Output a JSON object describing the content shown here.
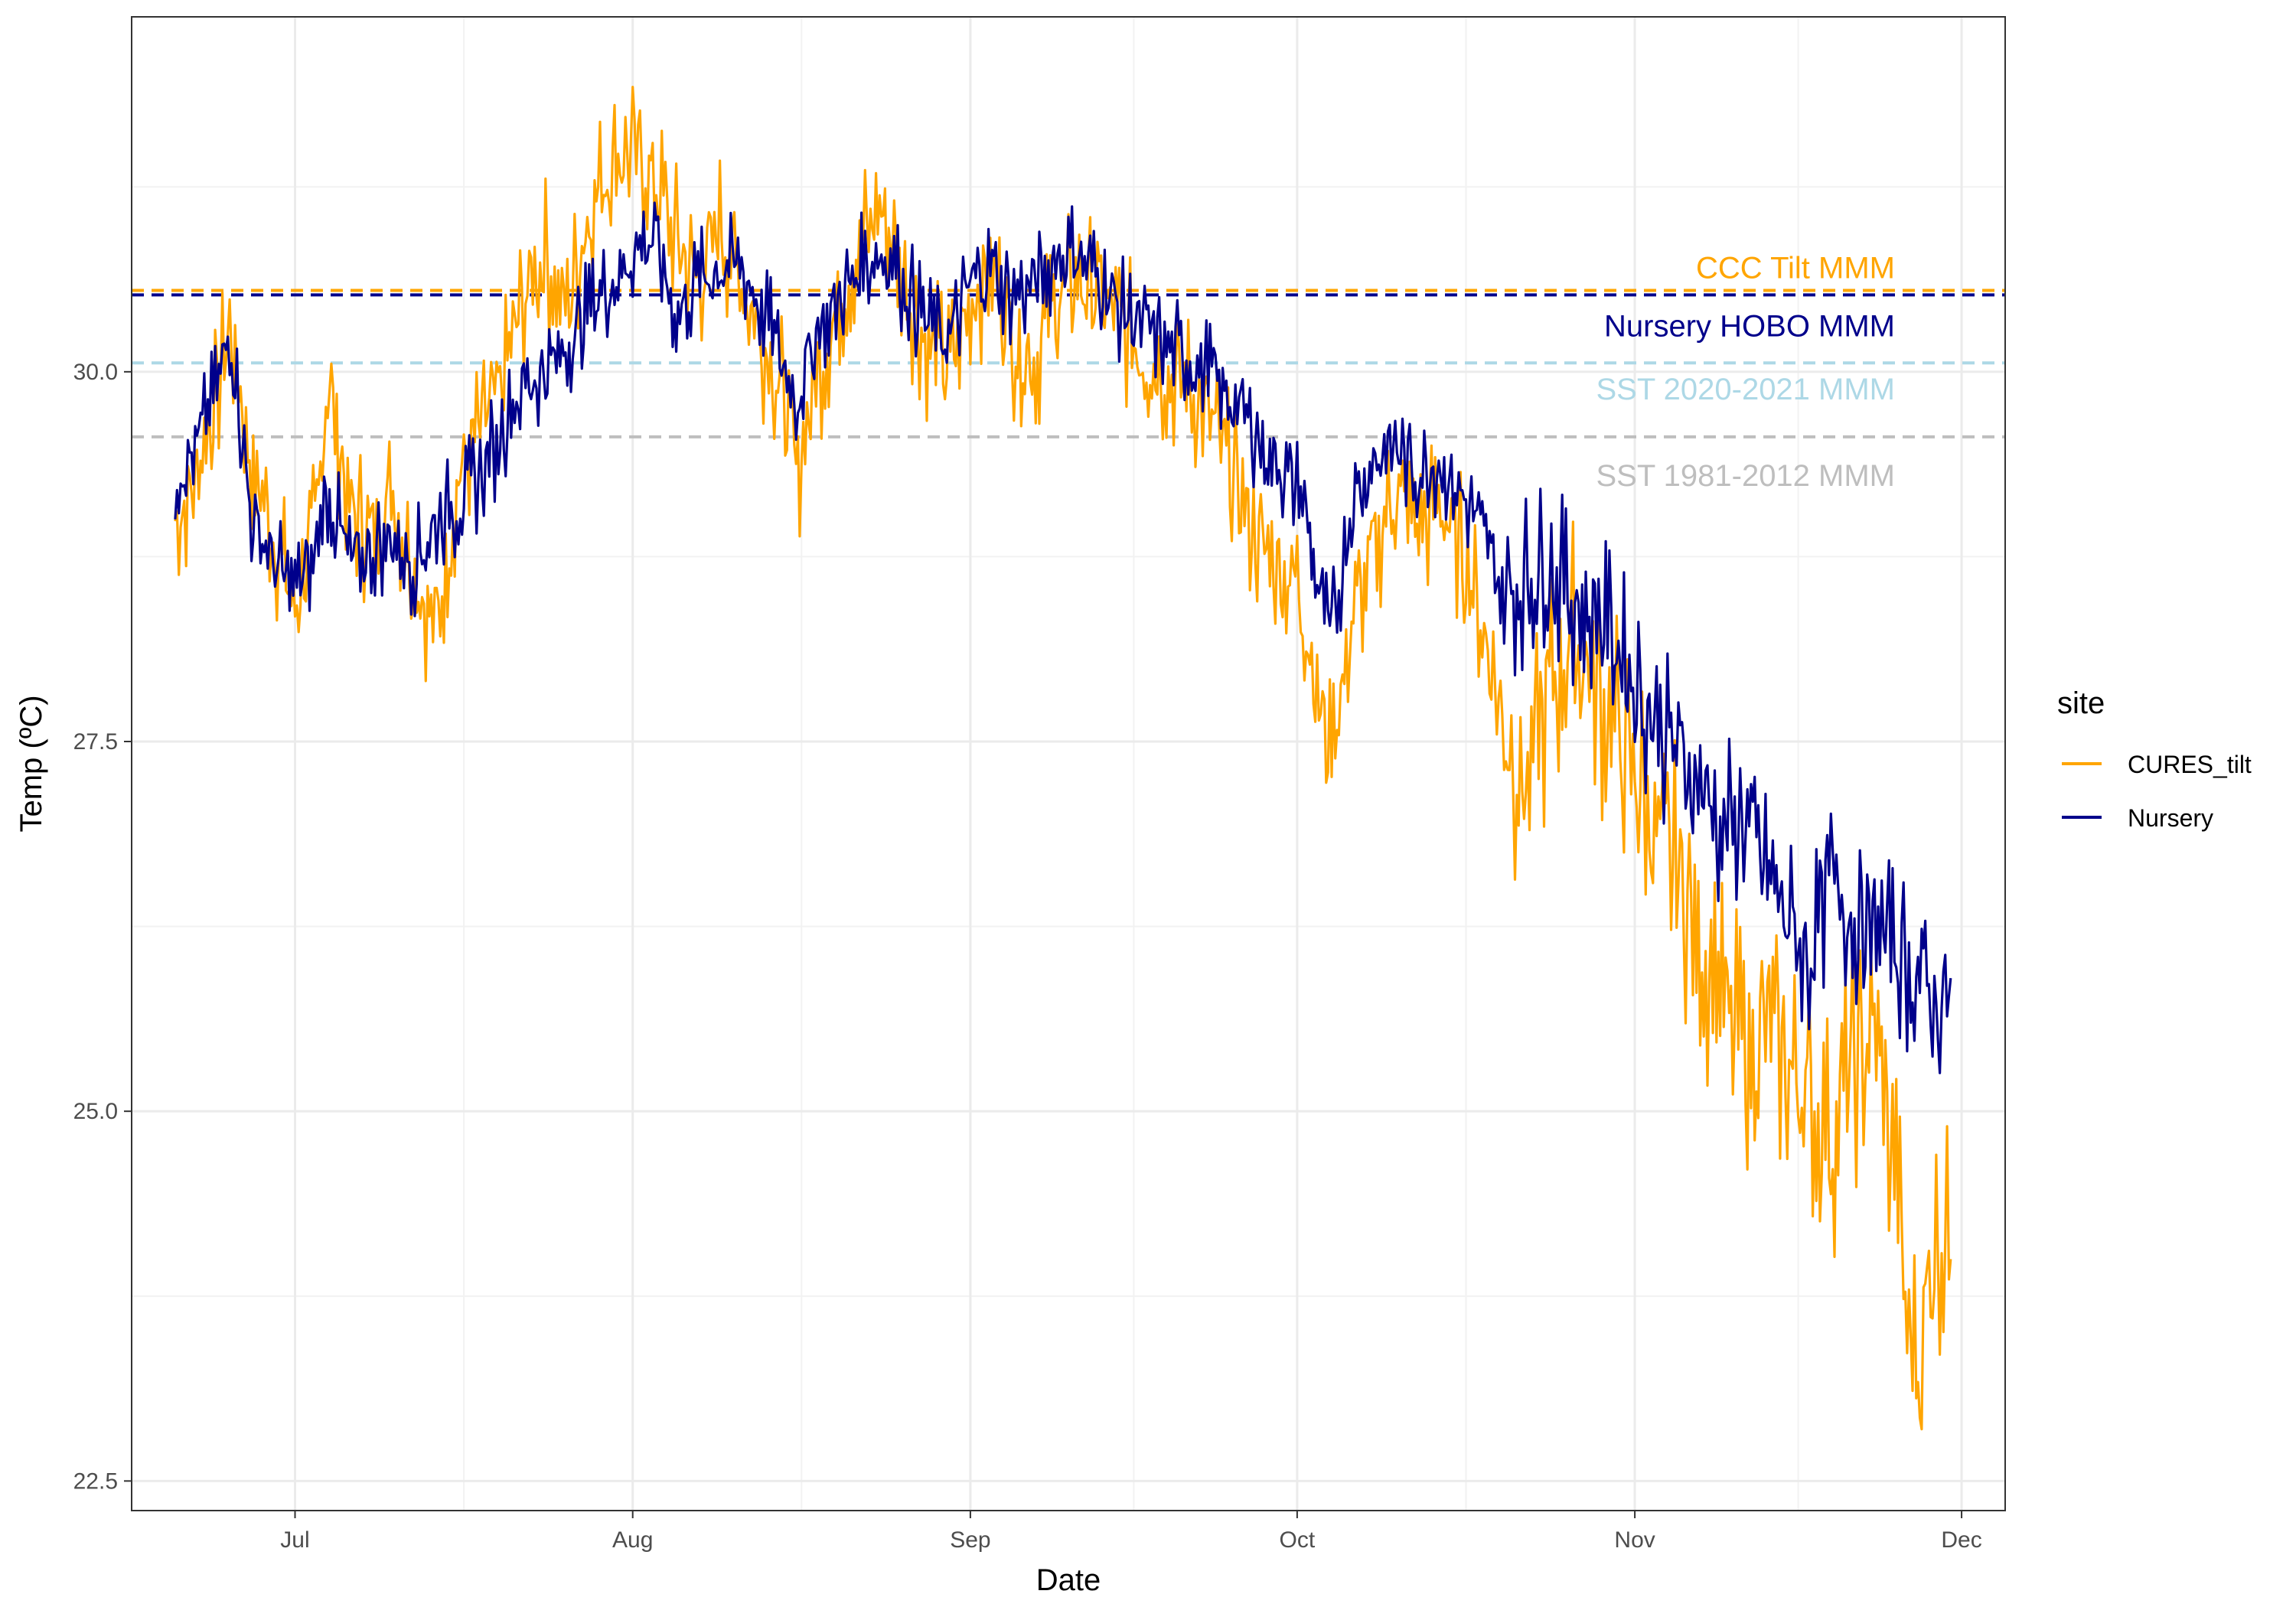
{
  "chart_data": {
    "type": "line",
    "xlabel": "Date",
    "ylabel": "Temp (ºC)",
    "x_axis": {
      "type": "date",
      "range": [
        "2022-06-16",
        "2022-12-05"
      ],
      "ticks": [
        {
          "date": "2022-07-01",
          "label": "Jul"
        },
        {
          "date": "2022-08-01",
          "label": "Aug"
        },
        {
          "date": "2022-09-01",
          "label": "Sep"
        },
        {
          "date": "2022-10-01",
          "label": "Oct"
        },
        {
          "date": "2022-11-01",
          "label": "Nov"
        },
        {
          "date": "2022-12-01",
          "label": "Dec"
        }
      ]
    },
    "y_axis": {
      "range": [
        22.3,
        32.4
      ],
      "ticks": [
        22.5,
        25.0,
        27.5,
        30.0
      ],
      "tick_labels": [
        "22.5",
        "25.0",
        "27.5",
        "30.0"
      ]
    },
    "grid": true,
    "legend": {
      "title": "site",
      "placement": "right",
      "entries": [
        {
          "label": "CURES_tilt",
          "color": "#FFA500"
        },
        {
          "label": "Nursery",
          "color": "#00008B"
        }
      ]
    },
    "reference_lines": [
      {
        "label": "CCC Tilt MMM",
        "y": 30.55,
        "color": "#FFA500",
        "style": "dashed"
      },
      {
        "label": "Nursery HOBO MMM",
        "y": 30.52,
        "color": "#00008B",
        "style": "dashed"
      },
      {
        "label": "SST 2020-2021 MMM",
        "y": 30.06,
        "color": "#ADD8E6",
        "style": "dashed"
      },
      {
        "label": "SST 1981-2012 MMM",
        "y": 29.56,
        "color": "#BEBEBE",
        "style": "dashed"
      }
    ],
    "series": [
      {
        "name": "CURES_tilt",
        "color": "#FFA500",
        "points": [
          [
            "2022-06-20",
            29.0
          ],
          [
            "2022-06-22",
            29.3
          ],
          [
            "2022-06-24",
            29.9
          ],
          [
            "2022-06-25",
            30.3
          ],
          [
            "2022-06-27",
            29.4
          ],
          [
            "2022-06-29",
            28.9
          ],
          [
            "2022-07-01",
            28.4
          ],
          [
            "2022-07-03",
            29.0
          ],
          [
            "2022-07-04",
            30.0
          ],
          [
            "2022-07-06",
            29.1
          ],
          [
            "2022-07-08",
            28.9
          ],
          [
            "2022-07-10",
            29.2
          ],
          [
            "2022-07-12",
            28.6
          ],
          [
            "2022-07-14",
            28.3
          ],
          [
            "2022-07-16",
            29.3
          ],
          [
            "2022-07-18",
            29.6
          ],
          [
            "2022-07-20",
            29.9
          ],
          [
            "2022-07-22",
            30.5
          ],
          [
            "2022-07-24",
            30.8
          ],
          [
            "2022-07-26",
            30.4
          ],
          [
            "2022-07-28",
            31.1
          ],
          [
            "2022-07-30",
            31.4
          ],
          [
            "2022-08-01",
            31.5
          ],
          [
            "2022-08-03",
            31.3
          ],
          [
            "2022-08-05",
            30.9
          ],
          [
            "2022-08-07",
            30.6
          ],
          [
            "2022-08-09",
            31.0
          ],
          [
            "2022-08-11",
            30.6
          ],
          [
            "2022-08-13",
            30.2
          ],
          [
            "2022-08-15",
            29.8
          ],
          [
            "2022-08-16",
            29.3
          ],
          [
            "2022-08-18",
            30.0
          ],
          [
            "2022-08-20",
            30.5
          ],
          [
            "2022-08-22",
            30.9
          ],
          [
            "2022-08-24",
            31.1
          ],
          [
            "2022-08-26",
            30.6
          ],
          [
            "2022-08-28",
            30.2
          ],
          [
            "2022-08-30",
            30.0
          ],
          [
            "2022-09-01",
            30.5
          ],
          [
            "2022-09-03",
            30.7
          ],
          [
            "2022-09-05",
            30.2
          ],
          [
            "2022-09-07",
            30.1
          ],
          [
            "2022-09-09",
            30.5
          ],
          [
            "2022-09-11",
            30.6
          ],
          [
            "2022-09-13",
            30.5
          ],
          [
            "2022-09-15",
            30.3
          ],
          [
            "2022-09-17",
            30.1
          ],
          [
            "2022-09-19",
            30.0
          ],
          [
            "2022-09-21",
            29.9
          ],
          [
            "2022-09-23",
            29.7
          ],
          [
            "2022-09-25",
            29.3
          ],
          [
            "2022-09-27",
            28.9
          ],
          [
            "2022-09-29",
            28.7
          ],
          [
            "2022-10-01",
            28.6
          ],
          [
            "2022-10-02",
            28.2
          ],
          [
            "2022-10-03",
            27.8
          ],
          [
            "2022-10-04",
            27.4
          ],
          [
            "2022-10-05",
            27.8
          ],
          [
            "2022-10-06",
            28.3
          ],
          [
            "2022-10-08",
            28.8
          ],
          [
            "2022-10-10",
            29.2
          ],
          [
            "2022-10-12",
            28.9
          ],
          [
            "2022-10-14",
            29.1
          ],
          [
            "2022-10-16",
            28.8
          ],
          [
            "2022-10-18",
            28.3
          ],
          [
            "2022-10-20",
            27.6
          ],
          [
            "2022-10-22",
            27.2
          ],
          [
            "2022-10-24",
            27.8
          ],
          [
            "2022-10-26",
            28.2
          ],
          [
            "2022-10-28",
            28.0
          ],
          [
            "2022-10-30",
            27.6
          ],
          [
            "2022-11-01",
            27.3
          ],
          [
            "2022-11-03",
            26.9
          ],
          [
            "2022-11-05",
            26.6
          ],
          [
            "2022-11-07",
            26.2
          ],
          [
            "2022-11-09",
            25.7
          ],
          [
            "2022-11-11",
            25.4
          ],
          [
            "2022-11-13",
            25.6
          ],
          [
            "2022-11-15",
            25.3
          ],
          [
            "2022-11-17",
            25.1
          ],
          [
            "2022-11-19",
            24.8
          ],
          [
            "2022-11-21",
            25.3
          ],
          [
            "2022-11-23",
            25.5
          ],
          [
            "2022-11-25",
            24.5
          ],
          [
            "2022-11-26",
            23.6
          ],
          [
            "2022-11-27",
            23.2
          ],
          [
            "2022-11-28",
            23.9
          ],
          [
            "2022-11-29",
            24.2
          ],
          [
            "2022-11-30",
            24.0
          ]
        ]
      },
      {
        "name": "Nursery",
        "color": "#00008B",
        "points": [
          [
            "2022-06-20",
            29.3
          ],
          [
            "2022-06-22",
            29.5
          ],
          [
            "2022-06-24",
            29.9
          ],
          [
            "2022-06-25",
            30.3
          ],
          [
            "2022-06-27",
            29.0
          ],
          [
            "2022-06-29",
            28.7
          ],
          [
            "2022-07-01",
            28.5
          ],
          [
            "2022-07-03",
            28.8
          ],
          [
            "2022-07-04",
            29.2
          ],
          [
            "2022-07-06",
            28.7
          ],
          [
            "2022-07-08",
            28.8
          ],
          [
            "2022-07-10",
            28.9
          ],
          [
            "2022-07-12",
            28.7
          ],
          [
            "2022-07-14",
            29.0
          ],
          [
            "2022-07-16",
            29.1
          ],
          [
            "2022-07-18",
            29.3
          ],
          [
            "2022-07-20",
            29.6
          ],
          [
            "2022-07-22",
            29.9
          ],
          [
            "2022-07-24",
            30.0
          ],
          [
            "2022-07-26",
            30.2
          ],
          [
            "2022-07-28",
            30.4
          ],
          [
            "2022-07-30",
            30.6
          ],
          [
            "2022-08-01",
            30.8
          ],
          [
            "2022-08-03",
            30.9
          ],
          [
            "2022-08-05",
            30.4
          ],
          [
            "2022-08-07",
            30.6
          ],
          [
            "2022-08-09",
            30.7
          ],
          [
            "2022-08-11",
            30.7
          ],
          [
            "2022-08-13",
            30.4
          ],
          [
            "2022-08-15",
            30.0
          ],
          [
            "2022-08-16",
            29.8
          ],
          [
            "2022-08-18",
            30.3
          ],
          [
            "2022-08-20",
            30.5
          ],
          [
            "2022-08-22",
            30.7
          ],
          [
            "2022-08-24",
            30.8
          ],
          [
            "2022-08-26",
            30.6
          ],
          [
            "2022-08-28",
            30.3
          ],
          [
            "2022-08-30",
            30.2
          ],
          [
            "2022-09-01",
            30.6
          ],
          [
            "2022-09-03",
            30.7
          ],
          [
            "2022-09-05",
            30.5
          ],
          [
            "2022-09-07",
            30.6
          ],
          [
            "2022-09-09",
            30.8
          ],
          [
            "2022-09-11",
            30.8
          ],
          [
            "2022-09-13",
            30.6
          ],
          [
            "2022-09-15",
            30.4
          ],
          [
            "2022-09-17",
            30.3
          ],
          [
            "2022-09-19",
            30.2
          ],
          [
            "2022-09-21",
            30.1
          ],
          [
            "2022-09-23",
            30.0
          ],
          [
            "2022-09-25",
            29.8
          ],
          [
            "2022-09-27",
            29.6
          ],
          [
            "2022-09-29",
            29.4
          ],
          [
            "2022-10-01",
            29.2
          ],
          [
            "2022-10-02",
            29.0
          ],
          [
            "2022-10-03",
            28.5
          ],
          [
            "2022-10-04",
            28.2
          ],
          [
            "2022-10-05",
            28.6
          ],
          [
            "2022-10-06",
            29.1
          ],
          [
            "2022-10-08",
            29.4
          ],
          [
            "2022-10-10",
            29.5
          ],
          [
            "2022-10-12",
            29.3
          ],
          [
            "2022-10-14",
            29.4
          ],
          [
            "2022-10-16",
            29.2
          ],
          [
            "2022-10-18",
            28.9
          ],
          [
            "2022-10-20",
            28.5
          ],
          [
            "2022-10-22",
            28.6
          ],
          [
            "2022-10-24",
            28.7
          ],
          [
            "2022-10-26",
            28.5
          ],
          [
            "2022-10-28",
            28.4
          ],
          [
            "2022-10-30",
            28.2
          ],
          [
            "2022-11-01",
            27.9
          ],
          [
            "2022-11-03",
            27.6
          ],
          [
            "2022-11-05",
            27.4
          ],
          [
            "2022-11-07",
            27.2
          ],
          [
            "2022-11-09",
            26.9
          ],
          [
            "2022-11-11",
            27.0
          ],
          [
            "2022-11-13",
            26.6
          ],
          [
            "2022-11-15",
            26.3
          ],
          [
            "2022-11-17",
            26.0
          ],
          [
            "2022-11-19",
            26.6
          ],
          [
            "2022-11-21",
            26.3
          ],
          [
            "2022-11-23",
            26.2
          ],
          [
            "2022-11-25",
            26.1
          ],
          [
            "2022-11-26",
            26.0
          ],
          [
            "2022-11-27",
            25.9
          ],
          [
            "2022-11-28",
            25.8
          ],
          [
            "2022-11-29",
            25.7
          ],
          [
            "2022-11-30",
            25.9
          ]
        ]
      }
    ]
  }
}
